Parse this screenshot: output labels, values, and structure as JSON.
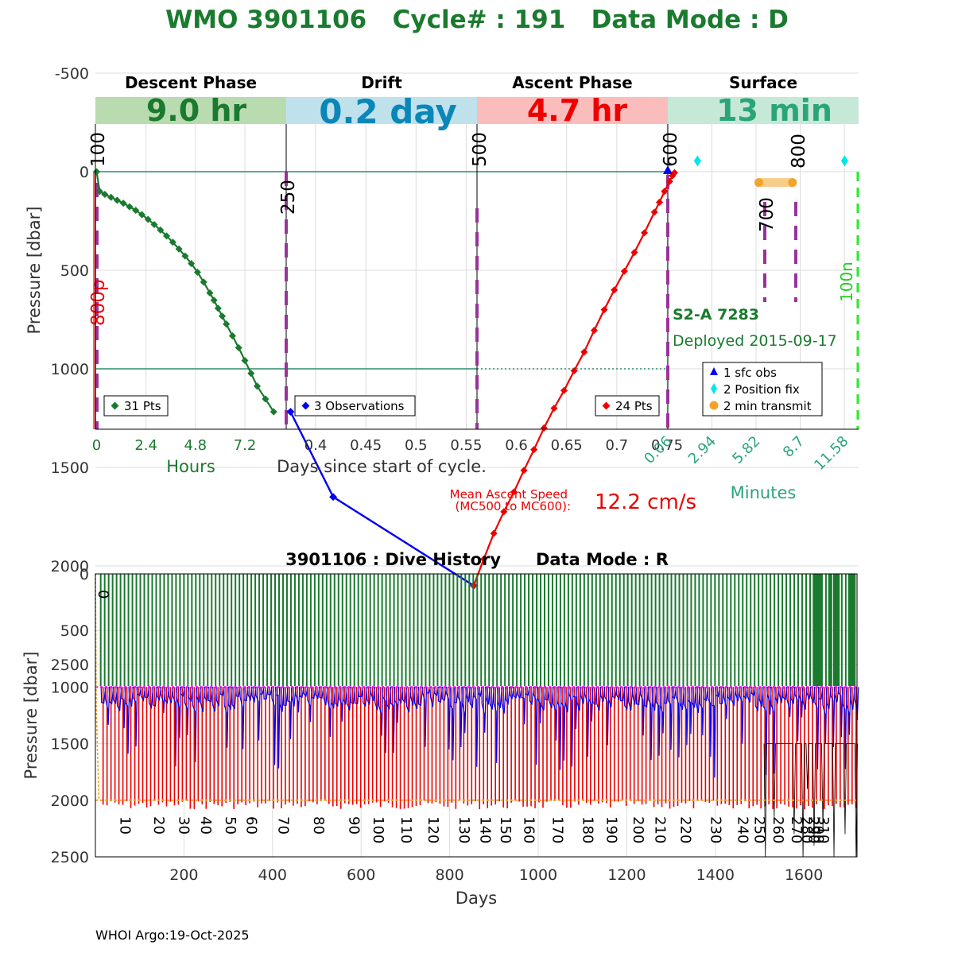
{
  "header": {
    "title": "WMO 3901106   Cycle# : 191   Data Mode : D"
  },
  "footer": {
    "credit": "WHOI Argo:19-Oct-2025"
  },
  "colors": {
    "title_green": "#1a7a2e",
    "descent": "#1a7a2e",
    "drift": "#0000ee",
    "ascent": "#ee0000",
    "surface_teal": "#2aa57a",
    "magenta_dash": "#993399",
    "band_descent": "#b9dbb0",
    "band_drift": "#bfe1ec",
    "band_ascent": "#fbbcbc",
    "band_surface": "#c6e8d6",
    "drift_text": "#0a86b8",
    "orange": "#f4a32a",
    "cyan": "#00e5ee",
    "lime": "#22ee22"
  },
  "cycle_plot": {
    "phases": [
      {
        "name": "Descent Phase",
        "duration": "9.0 hr"
      },
      {
        "name": "Drift",
        "duration": "0.2 day"
      },
      {
        "name": "Ascent Phase",
        "duration": "4.7 hr"
      },
      {
        "name": "Surface",
        "duration": "13 min"
      }
    ],
    "ylabel": "Pressure [dbar]",
    "y_ticks": [
      "-500",
      "0",
      "500",
      "1000",
      "1500",
      "2000",
      "2500"
    ],
    "hours_ticks": [
      "0",
      "2.4",
      "4.8",
      "7.2"
    ],
    "hours_label": "Hours",
    "days_ticks": [
      "0.4",
      "0.45",
      "0.5",
      "0.55",
      "0.6",
      "0.65",
      "0.7",
      "0.75"
    ],
    "days_label": "Days since start of cycle.",
    "minute_ticks": [
      "0.06",
      "2.94",
      "5.82",
      "8.7",
      "11.58"
    ],
    "minutes_label": "Minutes",
    "mc_labels": [
      "100",
      "250",
      "500",
      "600",
      "700",
      "800"
    ],
    "side_labels": {
      "left": "800p",
      "right": "100n"
    },
    "legend_descent": "31 Pts",
    "legend_drift": "3 Observations",
    "legend_ascent": "24 Pts",
    "surface_legend": [
      "1 sfc obs",
      "2 Position fix",
      "2 min transmit"
    ],
    "float_model": "S2-A 7283",
    "deployed": "Deployed 2015-09-17",
    "ascent_speed_label_1": "Mean Ascent Speed",
    "ascent_speed_label_2": "(MC500 to MC600):",
    "ascent_speed_value": "12.2 cm/s"
  },
  "chart_data": [
    {
      "type": "line",
      "title": "WMO 3901106   Cycle# : 191   Data Mode : D",
      "ylabel": "Pressure [dbar]",
      "ylim": [
        -500,
        2600
      ],
      "series": [
        {
          "name": "Descent (Hours)",
          "x": [
            0,
            0.15,
            0.4,
            0.7,
            1.0,
            1.3,
            1.6,
            1.9,
            2.2,
            2.5,
            2.8,
            3.1,
            3.4,
            3.7,
            4.0,
            4.3,
            4.6,
            4.9,
            5.2,
            5.5,
            5.7,
            5.9,
            6.1,
            6.3,
            6.6,
            6.9,
            7.2,
            7.5,
            7.8,
            8.2,
            8.6
          ],
          "y": [
            0,
            100,
            115,
            130,
            145,
            160,
            178,
            196,
            218,
            242,
            268,
            296,
            326,
            358,
            392,
            428,
            466,
            510,
            560,
            615,
            652,
            693,
            733,
            773,
            833,
            893,
            958,
            1023,
            1088,
            1153,
            1218
          ]
        },
        {
          "name": "Drift (Days)",
          "x": [
            0.375,
            0.4175,
            0.5575
          ],
          "y": [
            1218,
            1650,
            2100
          ]
        },
        {
          "name": "Ascent (Days)",
          "x": [
            0.5575,
            0.5675,
            0.5775,
            0.5875,
            0.5975,
            0.6075,
            0.6175,
            0.6275,
            0.6375,
            0.6475,
            0.6575,
            0.6675,
            0.6775,
            0.6875,
            0.6975,
            0.7075,
            0.7175,
            0.7275,
            0.7375,
            0.7425,
            0.7475,
            0.7525,
            0.7555,
            0.7575
          ],
          "y": [
            2100,
            1965,
            1835,
            1725,
            1625,
            1515,
            1410,
            1300,
            1200,
            1110,
            1010,
            915,
            805,
            700,
            600,
            505,
            410,
            310,
            205,
            155,
            100,
            50,
            20,
            5
          ]
        },
        {
          "name": "Surface observation (Minutes)",
          "x": [
            0.06
          ],
          "y": [
            0
          ]
        },
        {
          "name": "Position fix (Minutes)",
          "x": [
            2.0,
            11.6
          ],
          "y": [
            -55,
            -55
          ]
        },
        {
          "name": "Transmit (Minutes)",
          "x": [
            6.0,
            8.2
          ],
          "y": [
            55,
            55
          ]
        }
      ]
    },
    {
      "type": "line",
      "title": "3901106 : Dive History      Data Mode : R",
      "xlabel": "Days",
      "ylabel": "Pressure [dbar]",
      "xlim": [
        0,
        1720
      ],
      "ylim": [
        0,
        2500
      ],
      "x_ticks": [
        200,
        400,
        600,
        800,
        1000,
        1200,
        1400,
        1600
      ],
      "y_ticks": [
        0,
        500,
        1000,
        1500,
        2000,
        2500
      ],
      "cycle_labels": [
        "0",
        "10",
        "20",
        "30",
        "40",
        "50",
        "60",
        "70",
        "80",
        "90",
        "100",
        "110",
        "120",
        "130",
        "140",
        "150",
        "160",
        "170",
        "180",
        "190",
        "200",
        "210",
        "220",
        "230",
        "240",
        "250",
        "260",
        "270",
        "280",
        "290",
        "300",
        "310"
      ],
      "reference_lines": [
        {
          "name": "Drift target",
          "y": 1000
        },
        {
          "name": "Profile target",
          "y": 2000
        }
      ]
    }
  ],
  "history_plot": {
    "title": "3901106 : Dive History      Data Mode : R",
    "xlabel": "Days",
    "ylabel": "Pressure [dbar]"
  }
}
